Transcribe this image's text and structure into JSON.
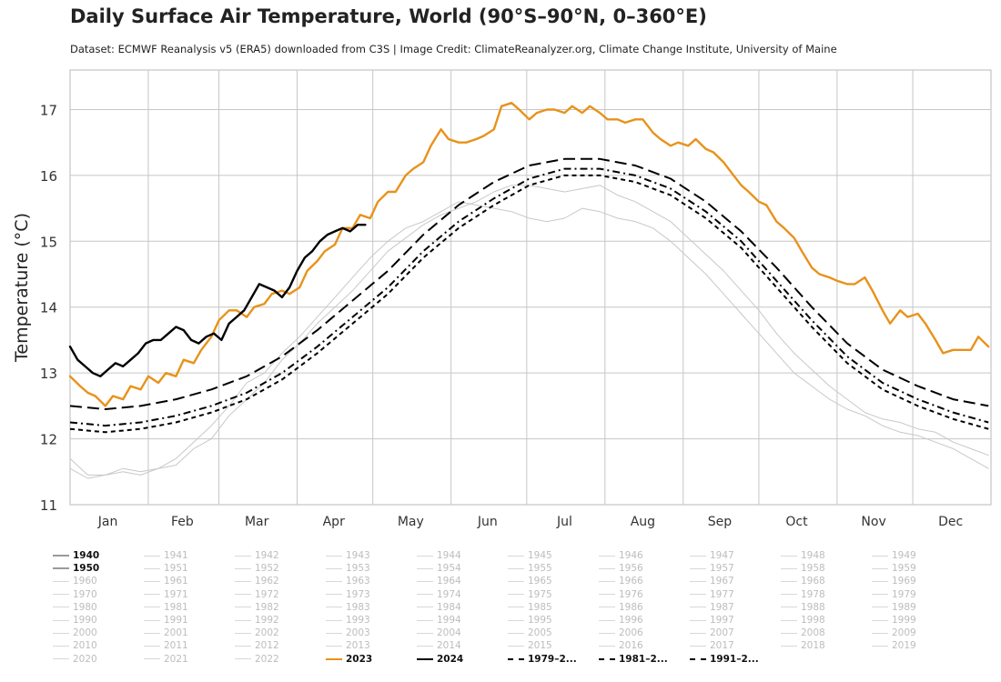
{
  "title": "Daily Surface Air Temperature, World (90°S–90°N, 0–360°E)",
  "subtitle": "Dataset: ECMWF Reanalysis v5 (ERA5) downloaded from C3S | Image Credit: ClimateReanalyzer.org, Climate Change Institute, University of Maine",
  "chart_data": {
    "type": "line",
    "ylabel": "Temperature (°C)",
    "xlabel": "",
    "ylim": [
      11,
      17.6
    ],
    "yticks": [
      11,
      12,
      13,
      14,
      15,
      16,
      17
    ],
    "xlim": [
      1,
      366
    ],
    "months": [
      "Jan",
      "Feb",
      "Mar",
      "Apr",
      "May",
      "Jun",
      "Jul",
      "Aug",
      "Sep",
      "Oct",
      "Nov",
      "Dec"
    ],
    "grid": true,
    "legend_position": "bottom",
    "series": [
      {
        "name": "1940",
        "color": "#c8c8c8",
        "style": "solid",
        "x": [
          1,
          8,
          15,
          22,
          29,
          36,
          43,
          50,
          57,
          64,
          71,
          78,
          85,
          92,
          99,
          106,
          113,
          120,
          127,
          134,
          141,
          148,
          155,
          162,
          169,
          176,
          183,
          190,
          197,
          204,
          211,
          218,
          225,
          232,
          239,
          246,
          253,
          260,
          267,
          274,
          281,
          288,
          295,
          302,
          309,
          316,
          323,
          330,
          337,
          344,
          351,
          358,
          365
        ],
        "y": [
          11.7,
          11.45,
          11.45,
          11.5,
          11.45,
          11.55,
          11.6,
          11.85,
          12.0,
          12.35,
          12.6,
          12.85,
          13.2,
          13.45,
          13.75,
          14.0,
          14.25,
          14.55,
          14.85,
          15.05,
          15.25,
          15.4,
          15.5,
          15.6,
          15.75,
          15.85,
          15.85,
          15.8,
          15.75,
          15.8,
          15.85,
          15.7,
          15.6,
          15.45,
          15.3,
          15.05,
          14.8,
          14.55,
          14.25,
          13.95,
          13.6,
          13.3,
          13.05,
          12.8,
          12.6,
          12.4,
          12.3,
          12.25,
          12.15,
          12.1,
          11.95,
          11.85,
          11.75
        ]
      },
      {
        "name": "1950",
        "color": "#c8c8c8",
        "style": "solid",
        "x": [
          1,
          8,
          15,
          22,
          29,
          36,
          43,
          50,
          57,
          64,
          71,
          78,
          85,
          92,
          99,
          106,
          113,
          120,
          127,
          134,
          141,
          148,
          155,
          162,
          169,
          176,
          183,
          190,
          197,
          204,
          211,
          218,
          225,
          232,
          239,
          246,
          253,
          260,
          267,
          274,
          281,
          288,
          295,
          302,
          309,
          316,
          323,
          330,
          337,
          344,
          351,
          358,
          365
        ],
        "y": [
          11.55,
          11.4,
          11.45,
          11.55,
          11.5,
          11.55,
          11.7,
          11.95,
          12.2,
          12.5,
          12.85,
          13.0,
          13.3,
          13.55,
          13.85,
          14.15,
          14.45,
          14.75,
          15.0,
          15.2,
          15.3,
          15.45,
          15.6,
          15.55,
          15.5,
          15.45,
          15.35,
          15.3,
          15.35,
          15.5,
          15.45,
          15.35,
          15.3,
          15.2,
          15.0,
          14.75,
          14.5,
          14.2,
          13.9,
          13.6,
          13.3,
          13.0,
          12.8,
          12.6,
          12.45,
          12.35,
          12.2,
          12.1,
          12.05,
          11.95,
          11.85,
          11.7,
          11.55
        ]
      },
      {
        "name": "2023",
        "color": "#e8921a",
        "style": "solid",
        "x": [
          1,
          5,
          8,
          11,
          15,
          18,
          22,
          25,
          29,
          32,
          36,
          39,
          43,
          46,
          50,
          53,
          57,
          60,
          64,
          67,
          71,
          74,
          78,
          81,
          85,
          88,
          92,
          95,
          99,
          102,
          106,
          109,
          113,
          116,
          120,
          123,
          127,
          130,
          134,
          137,
          141,
          144,
          148,
          151,
          155,
          158,
          162,
          165,
          169,
          172,
          176,
          179,
          183,
          186,
          190,
          193,
          197,
          200,
          204,
          207,
          211,
          214,
          218,
          221,
          225,
          228,
          232,
          235,
          239,
          242,
          246,
          249,
          253,
          256,
          260,
          263,
          267,
          270,
          274,
          277,
          281,
          284,
          288,
          291,
          295,
          298,
          302,
          305,
          309,
          312,
          316,
          319,
          323,
          326,
          330,
          333,
          337,
          340,
          344,
          347,
          351,
          354,
          358,
          361,
          365
        ],
        "y": [
          12.95,
          12.8,
          12.7,
          12.65,
          12.5,
          12.65,
          12.6,
          12.8,
          12.75,
          12.95,
          12.85,
          13.0,
          12.95,
          13.2,
          13.15,
          13.35,
          13.55,
          13.8,
          13.95,
          13.95,
          13.85,
          14.0,
          14.05,
          14.2,
          14.25,
          14.2,
          14.3,
          14.55,
          14.7,
          14.85,
          14.95,
          15.2,
          15.2,
          15.4,
          15.35,
          15.6,
          15.75,
          15.75,
          16.0,
          16.1,
          16.2,
          16.45,
          16.7,
          16.55,
          16.5,
          16.5,
          16.55,
          16.6,
          16.7,
          17.05,
          17.1,
          17.0,
          16.85,
          16.95,
          17.0,
          17.0,
          16.95,
          17.05,
          16.95,
          17.05,
          16.95,
          16.85,
          16.85,
          16.8,
          16.85,
          16.85,
          16.65,
          16.55,
          16.45,
          16.5,
          16.45,
          16.55,
          16.4,
          16.35,
          16.2,
          16.05,
          15.85,
          15.75,
          15.6,
          15.55,
          15.3,
          15.2,
          15.05,
          14.85,
          14.6,
          14.5,
          14.45,
          14.4,
          14.35,
          14.35,
          14.45,
          14.25,
          13.95,
          13.75,
          13.95,
          13.85,
          13.9,
          13.75,
          13.5,
          13.3,
          13.35,
          13.35,
          13.35,
          13.55,
          13.4
        ]
      },
      {
        "name": "2024",
        "color": "#000000",
        "style": "solid",
        "x": [
          1,
          4,
          7,
          10,
          13,
          16,
          19,
          22,
          25,
          28,
          31,
          34,
          37,
          40,
          43,
          46,
          49,
          52,
          55,
          58,
          61,
          64,
          67,
          70,
          73,
          76,
          79,
          82,
          85,
          88,
          91,
          94,
          97,
          100,
          103,
          106,
          109,
          112,
          115,
          118
        ],
        "y": [
          13.4,
          13.2,
          13.1,
          13.0,
          12.95,
          13.05,
          13.15,
          13.1,
          13.2,
          13.3,
          13.45,
          13.5,
          13.5,
          13.6,
          13.7,
          13.65,
          13.5,
          13.45,
          13.55,
          13.6,
          13.5,
          13.75,
          13.85,
          13.95,
          14.15,
          14.35,
          14.3,
          14.25,
          14.15,
          14.3,
          14.55,
          14.75,
          14.85,
          15.0,
          15.1,
          15.15,
          15.2,
          15.15,
          15.25,
          15.25
        ]
      },
      {
        "name": "1979–2...",
        "color": "#000000",
        "style": "dashed-short",
        "x": [
          1,
          15,
          29,
          43,
          57,
          71,
          85,
          99,
          113,
          127,
          141,
          155,
          169,
          183,
          197,
          211,
          225,
          239,
          253,
          267,
          281,
          295,
          309,
          323,
          337,
          351,
          365
        ],
        "y": [
          12.15,
          12.1,
          12.15,
          12.25,
          12.4,
          12.6,
          12.9,
          13.3,
          13.75,
          14.2,
          14.75,
          15.2,
          15.55,
          15.85,
          16.0,
          16.0,
          15.9,
          15.7,
          15.35,
          14.9,
          14.3,
          13.7,
          13.15,
          12.75,
          12.5,
          12.3,
          12.15
        ]
      },
      {
        "name": "1981–2...",
        "color": "#000000",
        "style": "dashed-dot",
        "x": [
          1,
          15,
          29,
          43,
          57,
          71,
          85,
          99,
          113,
          127,
          141,
          155,
          169,
          183,
          197,
          211,
          225,
          239,
          253,
          267,
          281,
          295,
          309,
          323,
          337,
          351,
          365
        ],
        "y": [
          12.25,
          12.2,
          12.25,
          12.35,
          12.5,
          12.7,
          13.0,
          13.4,
          13.85,
          14.3,
          14.85,
          15.3,
          15.65,
          15.95,
          16.1,
          16.1,
          16.0,
          15.8,
          15.45,
          15.0,
          14.4,
          13.8,
          13.25,
          12.85,
          12.6,
          12.4,
          12.25
        ]
      },
      {
        "name": "1991–2...",
        "color": "#000000",
        "style": "dashed-long",
        "x": [
          1,
          15,
          29,
          43,
          57,
          71,
          85,
          99,
          113,
          127,
          141,
          155,
          169,
          183,
          197,
          211,
          225,
          239,
          253,
          267,
          281,
          295,
          309,
          323,
          337,
          351,
          365
        ],
        "y": [
          12.5,
          12.45,
          12.5,
          12.6,
          12.75,
          12.95,
          13.25,
          13.65,
          14.1,
          14.55,
          15.1,
          15.55,
          15.9,
          16.15,
          16.25,
          16.25,
          16.15,
          15.95,
          15.6,
          15.15,
          14.6,
          14.0,
          13.45,
          13.05,
          12.8,
          12.6,
          12.5
        ]
      }
    ]
  },
  "legend": {
    "years": [
      "1940",
      "1941",
      "1942",
      "1943",
      "1944",
      "1945",
      "1946",
      "1947",
      "1948",
      "1949",
      "1950",
      "1951",
      "1952",
      "1953",
      "1954",
      "1955",
      "1956",
      "1957",
      "1958",
      "1959",
      "1960",
      "1961",
      "1962",
      "1963",
      "1964",
      "1965",
      "1966",
      "1967",
      "1968",
      "1969",
      "1970",
      "1971",
      "1972",
      "1973",
      "1974",
      "1975",
      "1976",
      "1977",
      "1978",
      "1979",
      "1980",
      "1981",
      "1982",
      "1983",
      "1984",
      "1985",
      "1986",
      "1987",
      "1988",
      "1989",
      "1990",
      "1991",
      "1992",
      "1993",
      "1994",
      "1995",
      "1996",
      "1997",
      "1998",
      "1999",
      "2000",
      "2001",
      "2002",
      "2003",
      "2004",
      "2005",
      "2006",
      "2007",
      "2008",
      "2009",
      "2010",
      "2011",
      "2012",
      "2013",
      "2014",
      "2015",
      "2016",
      "2017",
      "2018",
      "2019",
      "2020",
      "2021",
      "2022"
    ],
    "highlighted": [
      "1940",
      "1950"
    ],
    "special": [
      {
        "label": "2023",
        "color": "#e8921a",
        "style": "solid"
      },
      {
        "label": "2024",
        "color": "#000000",
        "style": "solid"
      },
      {
        "label": "1979–2...",
        "color": "#000000",
        "style": "dashed-short"
      },
      {
        "label": "1981–2...",
        "color": "#000000",
        "style": "dashed-dot"
      },
      {
        "label": "1991–2...",
        "color": "#000000",
        "style": "dashed-long"
      }
    ]
  }
}
